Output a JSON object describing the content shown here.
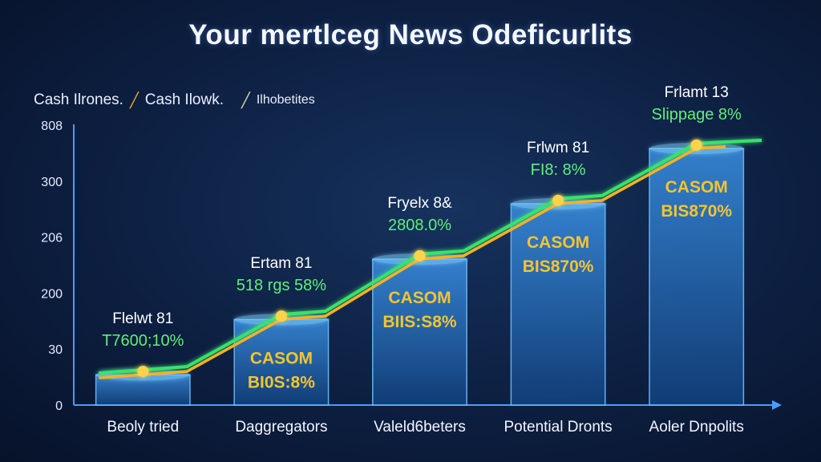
{
  "title": "Your mertlceg News Odeficurlits",
  "legend": [
    {
      "label": "Cash Ilrones.",
      "color": "#ffffff"
    },
    {
      "label": "Cash Ilowk.",
      "color": "#f5a623"
    },
    {
      "label": "Ilhobetites",
      "color": "#d9d9a0"
    }
  ],
  "colors": {
    "bar": "#2f7fcf",
    "bar_label": "#f5c431",
    "line_green": "#39e26a",
    "line_orange": "#ffb020",
    "point_label": "#5ef07a",
    "axis": "#4a9bff"
  },
  "chart_data": {
    "type": "bar",
    "title": "Your mertlceg News Odeficurlits",
    "categories": [
      "Beoly tried",
      "Daggregators",
      "Valeld6beters",
      "Potential Dronts",
      "Aoler Dnpolits"
    ],
    "y_ticks": [
      "0",
      "30",
      "200",
      "206",
      "300",
      "808"
    ],
    "ylim": [
      0,
      5.5
    ],
    "series": [
      {
        "values": [
          0.6,
          1.7,
          2.9,
          4.0,
          5.1
        ]
      }
    ],
    "bar_labels": [
      "",
      "CASOM\nBI0S:8%",
      "CASOM\nBIIS:S8%",
      "CASOM\nBIS870%",
      "CASOM\nBIS870%"
    ],
    "line_values": [
      0.7,
      1.8,
      3.0,
      4.1,
      5.2
    ],
    "point_labels": [
      {
        "top": "Flelwt 81",
        "bottom": "T7600;10%"
      },
      {
        "top": "Ertam 81",
        "bottom": "518 rgs 58%"
      },
      {
        "top": "Fryelx 8&",
        "bottom": "2808.0%"
      },
      {
        "top": "Frlwm 81",
        "bottom": "FI8: 8%"
      },
      {
        "top": "Frlamt 13",
        "bottom": "Slippage 8%"
      }
    ],
    "grid": false,
    "legend_position": "top-left"
  }
}
